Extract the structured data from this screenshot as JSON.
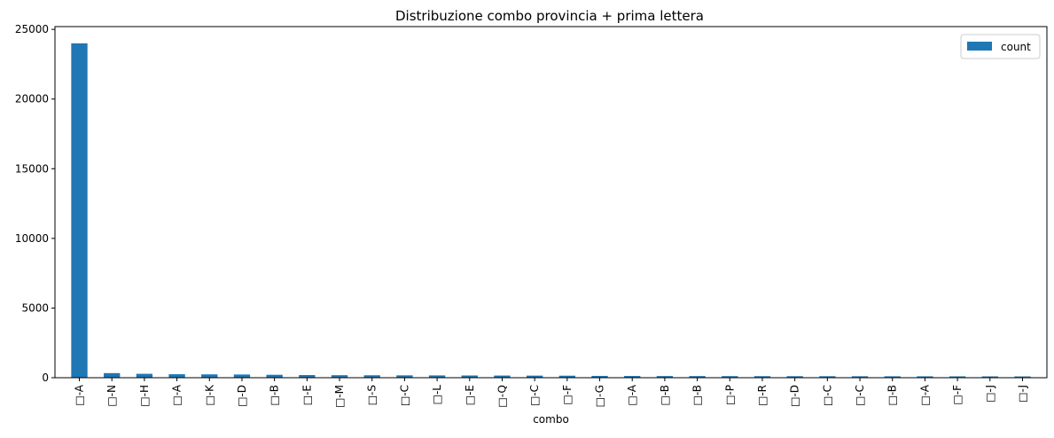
{
  "chart_data": {
    "type": "bar",
    "title": "Distribuzione combo provincia + prima lettera",
    "xlabel": "combo",
    "ylabel": "",
    "ylim": [
      0,
      25200
    ],
    "yticks": [
      0,
      5000,
      10000,
      15000,
      20000,
      25000
    ],
    "ytick_labels": [
      "0",
      "5000",
      "10000",
      "15000",
      "20000",
      "25000"
    ],
    "grid": false,
    "legend": {
      "position": "top-right",
      "entries": [
        "count"
      ]
    },
    "categories": [
      "□-A",
      "□-N",
      "□-H",
      "□-A",
      "□-K",
      "□-D",
      "□-B",
      "□-E",
      "□-M",
      "□-S",
      "□-C",
      "□-L",
      "□-E",
      "□-Q",
      "□-C",
      "□-F",
      "□-G",
      "□-A",
      "□-B",
      "□-B",
      "□-P",
      "□-R",
      "□-D",
      "□-C",
      "□-C",
      "□-B",
      "□-A",
      "□-F",
      "□-J",
      "□-J"
    ],
    "series": [
      {
        "name": "count",
        "color": "#1f77b4",
        "values": [
          24000,
          330,
          280,
          250,
          240,
          230,
          210,
          190,
          180,
          175,
          170,
          165,
          160,
          155,
          150,
          145,
          130,
          125,
          120,
          118,
          115,
          112,
          110,
          108,
          105,
          102,
          100,
          98,
          95,
          92
        ]
      }
    ]
  }
}
